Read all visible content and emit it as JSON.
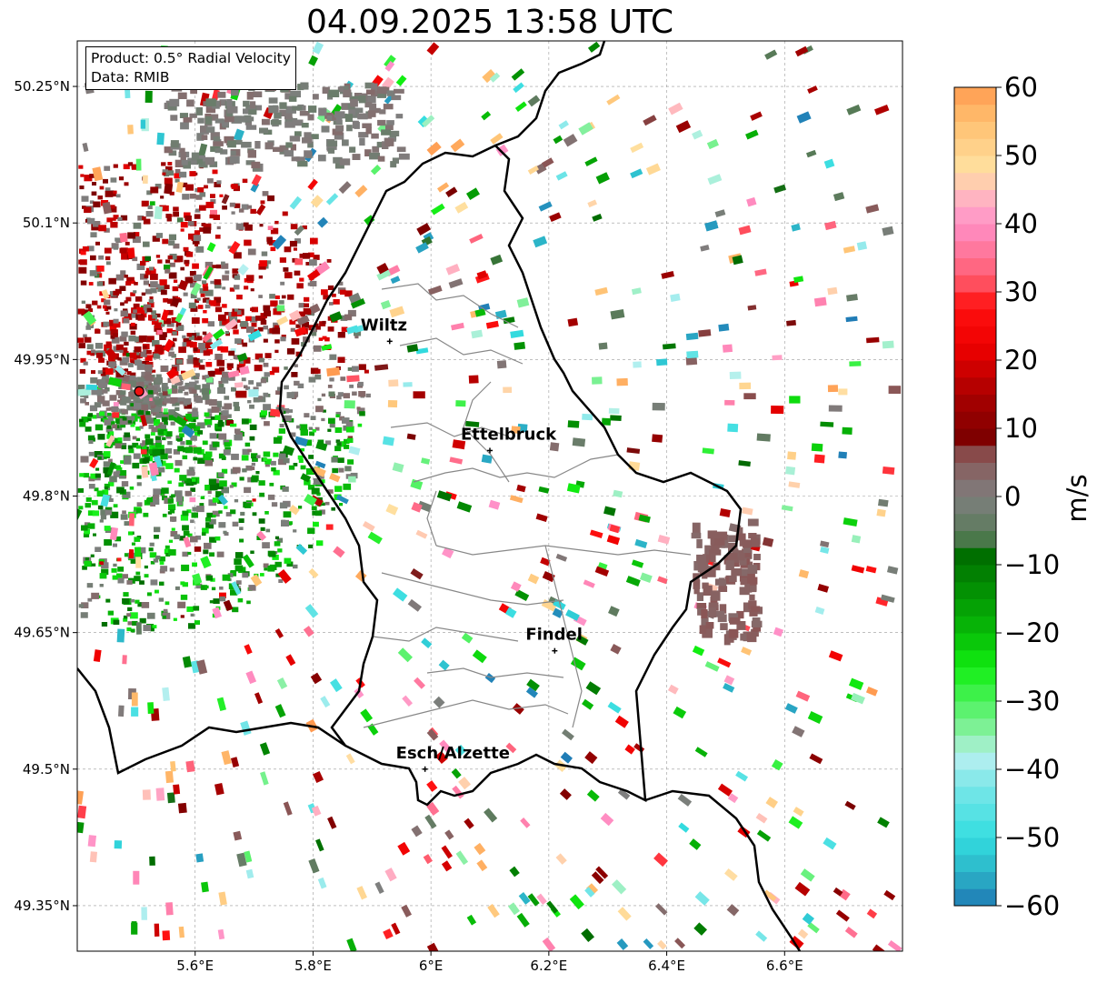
{
  "title": "04.09.2025 13:58 UTC",
  "info": {
    "product": "Product: 0.5° Radial Velocity",
    "data": "Data: RMIB"
  },
  "axes": {
    "lon_range": [
      5.4,
      6.8
    ],
    "lat_range": [
      49.3,
      50.3
    ],
    "lon_ticks": [
      "5.6°E",
      "5.8°E",
      "6°E",
      "6.2°E",
      "6.4°E",
      "6.6°E"
    ],
    "lat_ticks": [
      "49.35°N",
      "49.5°N",
      "49.65°N",
      "49.8°N",
      "49.95°N",
      "50.1°N",
      "50.25°N"
    ],
    "grid": true
  },
  "cities": [
    {
      "name": "Wiltz",
      "lon": 5.93,
      "lat": 49.97
    },
    {
      "name": "Ettelbruck",
      "lon": 6.1,
      "lat": 49.85
    },
    {
      "name": "Findel",
      "lon": 6.21,
      "lat": 49.63
    },
    {
      "name": "Esch/Alzette",
      "lon": 5.99,
      "lat": 49.5
    }
  ],
  "radar_site": {
    "lon": 5.505,
    "lat": 49.915,
    "color": "#ee1111"
  },
  "colorbar": {
    "label": "m/s",
    "min": -60,
    "max": 60,
    "ticks": [
      "60",
      "50",
      "40",
      "30",
      "20",
      "10",
      "0",
      "−10",
      "−20",
      "−30",
      "−40",
      "−50",
      "−60"
    ]
  }
}
